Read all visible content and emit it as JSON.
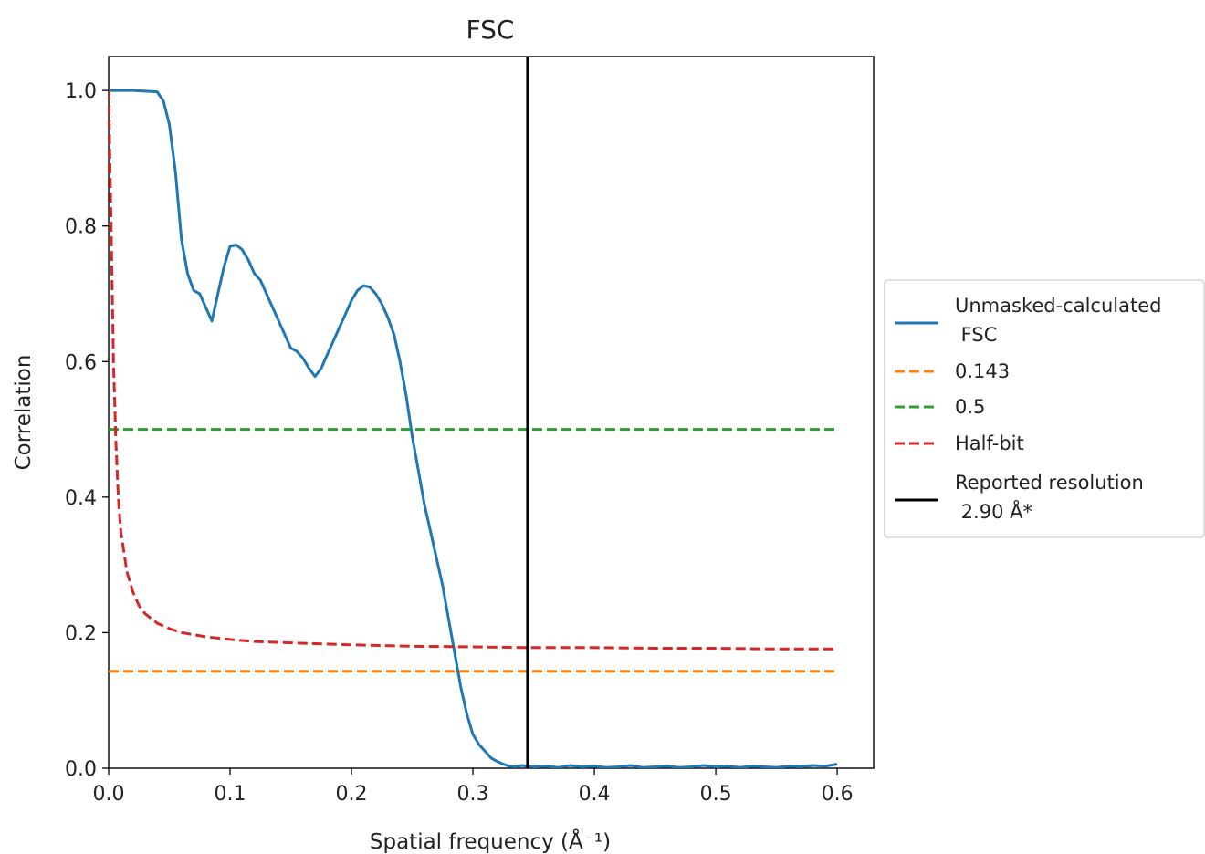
{
  "chart_data": {
    "type": "line",
    "title": "FSC",
    "xlabel": "Spatial frequency (Å⁻¹)",
    "ylabel": "Correlation",
    "xlim": [
      0.0,
      0.63
    ],
    "ylim": [
      0.0,
      1.05
    ],
    "xticks": [
      0.0,
      0.1,
      0.2,
      0.3,
      0.4,
      0.5,
      0.6
    ],
    "xtick_labels": [
      "0.0",
      "0.1",
      "0.2",
      "0.3",
      "0.4",
      "0.5",
      "0.6"
    ],
    "yticks": [
      0.0,
      0.2,
      0.4,
      0.6,
      0.8,
      1.0
    ],
    "ytick_labels": [
      "0.0",
      "0.2",
      "0.4",
      "0.6",
      "0.8",
      "1.0"
    ],
    "grid": false,
    "legend_position": "outside right",
    "series": [
      {
        "name": "Unmasked-calculated FSC",
        "color": "#1f77b4",
        "style": "solid",
        "x": [
          0.0,
          0.01,
          0.02,
          0.03,
          0.04,
          0.045,
          0.05,
          0.055,
          0.06,
          0.065,
          0.07,
          0.075,
          0.08,
          0.085,
          0.09,
          0.095,
          0.1,
          0.105,
          0.11,
          0.115,
          0.12,
          0.125,
          0.13,
          0.135,
          0.14,
          0.145,
          0.15,
          0.155,
          0.16,
          0.165,
          0.17,
          0.175,
          0.18,
          0.185,
          0.19,
          0.195,
          0.2,
          0.205,
          0.21,
          0.215,
          0.22,
          0.225,
          0.23,
          0.235,
          0.24,
          0.245,
          0.25,
          0.255,
          0.26,
          0.265,
          0.27,
          0.275,
          0.28,
          0.285,
          0.29,
          0.295,
          0.3,
          0.305,
          0.31,
          0.315,
          0.32,
          0.325,
          0.33,
          0.335,
          0.34,
          0.345,
          0.35,
          0.36,
          0.37,
          0.38,
          0.39,
          0.4,
          0.41,
          0.42,
          0.43,
          0.44,
          0.45,
          0.46,
          0.47,
          0.48,
          0.49,
          0.5,
          0.51,
          0.52,
          0.53,
          0.54,
          0.55,
          0.56,
          0.57,
          0.58,
          0.59,
          0.6
        ],
        "y": [
          1.0,
          1.0,
          1.0,
          0.999,
          0.998,
          0.985,
          0.95,
          0.88,
          0.78,
          0.73,
          0.705,
          0.7,
          0.68,
          0.66,
          0.7,
          0.74,
          0.77,
          0.772,
          0.765,
          0.75,
          0.73,
          0.72,
          0.7,
          0.68,
          0.66,
          0.64,
          0.62,
          0.615,
          0.605,
          0.59,
          0.578,
          0.59,
          0.61,
          0.63,
          0.65,
          0.67,
          0.69,
          0.705,
          0.712,
          0.71,
          0.7,
          0.685,
          0.665,
          0.64,
          0.6,
          0.55,
          0.49,
          0.44,
          0.39,
          0.35,
          0.31,
          0.27,
          0.22,
          0.17,
          0.12,
          0.08,
          0.05,
          0.035,
          0.025,
          0.015,
          0.01,
          0.006,
          0.003,
          0.002,
          0.004,
          0.003,
          0.002,
          0.003,
          0.001,
          0.004,
          0.002,
          0.003,
          0.001,
          0.002,
          0.004,
          0.001,
          0.002,
          0.003,
          0.001,
          0.002,
          0.004,
          0.002,
          0.003,
          0.001,
          0.003,
          0.002,
          0.001,
          0.003,
          0.002,
          0.004,
          0.003,
          0.006
        ]
      },
      {
        "name": "0.143",
        "color": "#ff7f0e",
        "style": "dashed",
        "x": [
          0.0,
          0.6
        ],
        "y": [
          0.143,
          0.143
        ]
      },
      {
        "name": "0.5",
        "color": "#2ca02c",
        "style": "dashed",
        "x": [
          0.0,
          0.6
        ],
        "y": [
          0.5,
          0.5
        ]
      },
      {
        "name": "Half-bit",
        "color": "#d62728",
        "style": "dashed",
        "x": [
          0.0,
          0.002,
          0.004,
          0.006,
          0.008,
          0.01,
          0.015,
          0.02,
          0.025,
          0.03,
          0.04,
          0.05,
          0.06,
          0.08,
          0.1,
          0.12,
          0.15,
          0.2,
          0.25,
          0.3,
          0.35,
          0.4,
          0.45,
          0.5,
          0.55,
          0.6
        ],
        "y": [
          1.0,
          0.8,
          0.6,
          0.48,
          0.4,
          0.35,
          0.29,
          0.26,
          0.24,
          0.228,
          0.214,
          0.206,
          0.2,
          0.194,
          0.19,
          0.187,
          0.185,
          0.182,
          0.18,
          0.179,
          0.178,
          0.178,
          0.177,
          0.177,
          0.176,
          0.176
        ]
      },
      {
        "name": "Reported resolution\n 2.90 Å*",
        "color": "#000000",
        "style": "solid",
        "vertical_line_x": 0.345
      }
    ],
    "legend": [
      {
        "line1": "Unmasked-calculated",
        "line2": " FSC",
        "color": "#1f77b4",
        "style": "solid"
      },
      {
        "line1": "0.143",
        "line2": "",
        "color": "#ff7f0e",
        "style": "dashed"
      },
      {
        "line1": "0.5",
        "line2": "",
        "color": "#2ca02c",
        "style": "dashed"
      },
      {
        "line1": "Half-bit",
        "line2": "",
        "color": "#d62728",
        "style": "dashed"
      },
      {
        "line1": "Reported resolution",
        "line2": " 2.90 Å*",
        "color": "#000000",
        "style": "solid"
      }
    ]
  }
}
